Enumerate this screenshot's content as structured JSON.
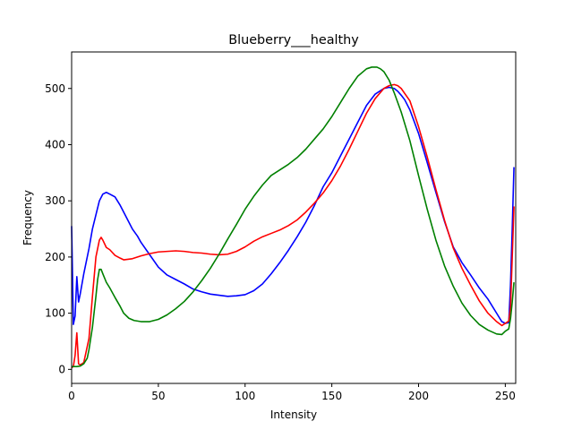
{
  "chart_data": {
    "type": "line",
    "title": "Blueberry___healthy",
    "xlabel": "Intensity",
    "ylabel": "Frequency",
    "xlim": [
      0,
      256
    ],
    "ylim": [
      -25,
      565
    ],
    "xticks": [
      0,
      50,
      100,
      150,
      200,
      250
    ],
    "yticks": [
      0,
      100,
      200,
      300,
      400,
      500
    ],
    "grid": false,
    "legend": "none",
    "series": [
      {
        "color": "#0000ff",
        "x": [
          0,
          1,
          2,
          3,
          4,
          5,
          7,
          10,
          12,
          14,
          16,
          18,
          20,
          22,
          25,
          28,
          30,
          33,
          35,
          38,
          40,
          45,
          50,
          55,
          60,
          65,
          70,
          75,
          80,
          85,
          90,
          95,
          100,
          105,
          110,
          115,
          120,
          125,
          130,
          135,
          140,
          145,
          150,
          155,
          160,
          165,
          170,
          175,
          180,
          183,
          186,
          188,
          190,
          192,
          195,
          200,
          205,
          210,
          215,
          220,
          225,
          230,
          235,
          240,
          245,
          248,
          250,
          252,
          253,
          254,
          255
        ],
        "y": [
          255,
          80,
          95,
          165,
          120,
          135,
          170,
          215,
          250,
          275,
          300,
          312,
          315,
          312,
          307,
          292,
          280,
          262,
          250,
          237,
          226,
          204,
          182,
          168,
          160,
          152,
          143,
          138,
          134,
          132,
          130,
          131,
          133,
          140,
          152,
          170,
          190,
          212,
          236,
          262,
          292,
          325,
          350,
          380,
          410,
          440,
          470,
          490,
          500,
          502,
          500,
          495,
          488,
          480,
          462,
          420,
          368,
          315,
          263,
          218,
          190,
          168,
          145,
          125,
          100,
          85,
          82,
          83,
          150,
          250,
          360
        ]
      },
      {
        "color": "#ff0000",
        "x": [
          0,
          1,
          2,
          3,
          4,
          5,
          7,
          10,
          12,
          14,
          16,
          17,
          18,
          20,
          22,
          25,
          28,
          30,
          35,
          40,
          45,
          50,
          55,
          60,
          65,
          70,
          75,
          80,
          85,
          90,
          95,
          100,
          105,
          110,
          115,
          120,
          125,
          130,
          135,
          140,
          145,
          150,
          155,
          160,
          165,
          170,
          175,
          180,
          183,
          186,
          188,
          190,
          195,
          200,
          205,
          210,
          215,
          220,
          225,
          230,
          235,
          240,
          245,
          248,
          250,
          252,
          253,
          254,
          255
        ],
        "y": [
          3,
          5,
          25,
          65,
          10,
          8,
          12,
          55,
          130,
          200,
          230,
          235,
          230,
          217,
          213,
          203,
          198,
          195,
          197,
          202,
          206,
          209,
          210,
          211,
          210,
          208,
          207,
          205,
          204,
          205,
          210,
          218,
          228,
          236,
          242,
          248,
          256,
          266,
          280,
          296,
          314,
          336,
          362,
          392,
          424,
          456,
          482,
          500,
          505,
          507,
          505,
          500,
          478,
          432,
          378,
          320,
          265,
          216,
          180,
          150,
          122,
          100,
          85,
          78,
          82,
          86,
          110,
          200,
          290
        ]
      },
      {
        "color": "#008000",
        "x": [
          0,
          2,
          3,
          5,
          7,
          9,
          10,
          12,
          14,
          15,
          16,
          17,
          18,
          20,
          22,
          25,
          28,
          30,
          33,
          36,
          40,
          45,
          50,
          55,
          60,
          65,
          70,
          75,
          80,
          85,
          90,
          95,
          100,
          105,
          110,
          115,
          120,
          125,
          130,
          135,
          140,
          145,
          150,
          155,
          160,
          165,
          170,
          173,
          176,
          178,
          180,
          183,
          186,
          190,
          195,
          200,
          205,
          210,
          215,
          220,
          225,
          230,
          235,
          240,
          245,
          248,
          250,
          252,
          253,
          254,
          255
        ],
        "y": [
          5,
          5,
          5,
          6,
          10,
          20,
          35,
          75,
          130,
          160,
          178,
          178,
          170,
          155,
          145,
          128,
          112,
          100,
          91,
          87,
          85,
          85,
          89,
          97,
          108,
          121,
          138,
          158,
          180,
          205,
          232,
          258,
          285,
          308,
          328,
          345,
          355,
          365,
          377,
          392,
          410,
          428,
          450,
          475,
          500,
          522,
          535,
          538,
          538,
          535,
          530,
          515,
          492,
          458,
          407,
          345,
          285,
          230,
          184,
          148,
          118,
          96,
          80,
          70,
          63,
          62,
          68,
          72,
          90,
          120,
          155
        ]
      }
    ]
  }
}
